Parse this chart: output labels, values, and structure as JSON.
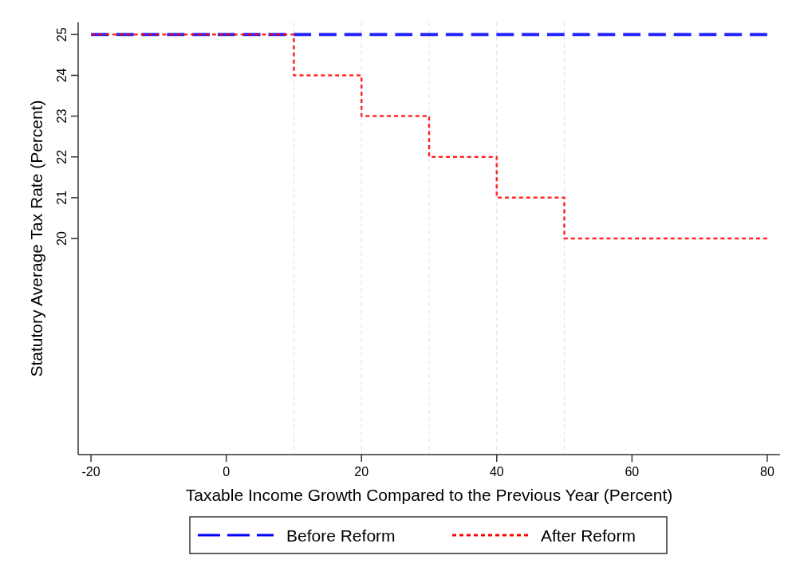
{
  "chart_data": {
    "type": "step",
    "xlabel": "Taxable Income Growth Compared to the Previous Year (Percent)",
    "ylabel": "Statutory Average Tax Rate (Percent)",
    "xlim": [
      -21.9,
      81.9
    ],
    "xticks": [
      -20,
      0,
      20,
      40,
      60,
      80
    ],
    "ylim": [
      14.7,
      25.3
    ],
    "yticks": [
      20,
      21,
      22,
      23,
      24,
      25
    ],
    "grid": false,
    "legend": "bottom",
    "marker": "none",
    "series": [
      {
        "name": "Before Reform",
        "color": "#0000ff",
        "line_style": "dashed",
        "x": [
          -20,
          80
        ],
        "values": [
          25,
          25
        ]
      },
      {
        "name": "After Reform",
        "color": "#ff0000",
        "line_style": "dotted",
        "x": [
          -20,
          10,
          20,
          30,
          40,
          50,
          80
        ],
        "values": [
          25,
          24,
          23,
          22,
          21,
          20,
          20
        ]
      }
    ],
    "ref_lines": [
      {
        "axis": "x",
        "value": 10,
        "color": "#dcdcff",
        "line_style": "dashed"
      },
      {
        "axis": "x",
        "value": 20,
        "color": "#dcdcff",
        "line_style": "dashed"
      },
      {
        "axis": "x",
        "value": 30,
        "color": "#dcdcff",
        "line_style": "dashed"
      },
      {
        "axis": "x",
        "value": 40,
        "color": "#dcdcff",
        "line_style": "dashed"
      },
      {
        "axis": "x",
        "value": 50,
        "color": "#dcdcff",
        "line_style": "dashed"
      }
    ]
  }
}
